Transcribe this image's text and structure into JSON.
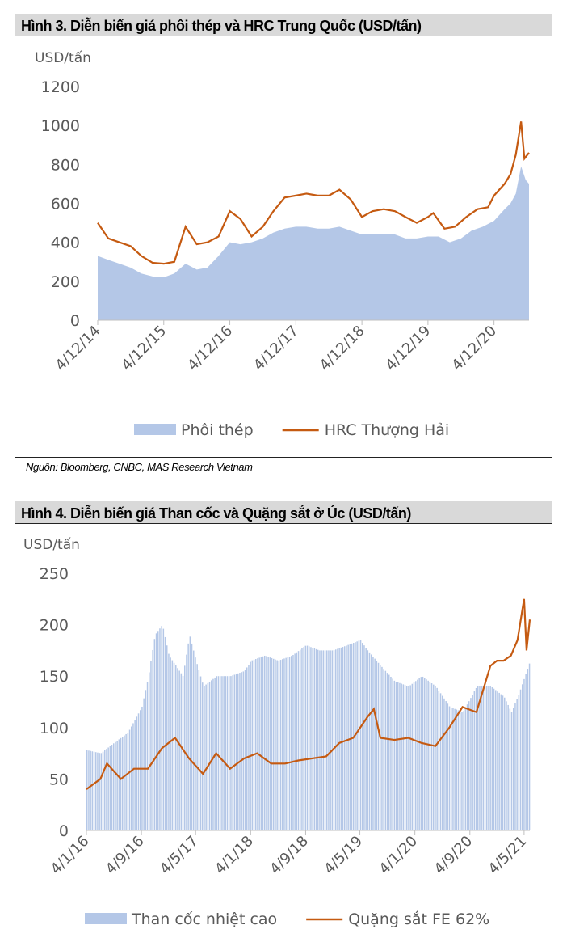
{
  "chart_data": [
    {
      "type": "area+line",
      "title": "Hình 3. Diễn biến giá phôi thép và HRC Trung Quốc (USD/tấn)",
      "ylabel": "USD/tấn",
      "xlabel": "",
      "ylim": [
        0,
        1200
      ],
      "yticks": [
        0,
        200,
        400,
        600,
        800,
        1000,
        1200
      ],
      "xtick_labels": [
        "4/12/14",
        "4/12/15",
        "4/12/16",
        "4/12/17",
        "4/12/18",
        "4/12/19",
        "4/12/20"
      ],
      "xticks": [
        2014.92,
        2015.92,
        2016.92,
        2017.92,
        2018.92,
        2019.92,
        2020.92
      ],
      "xlim": [
        2014.92,
        2021.45
      ],
      "legend": "bottom",
      "source": "Nguồn: Bloomberg, CNBC, MAS Research Vietnam",
      "series": [
        {
          "name": "Phôi thép",
          "kind": "area",
          "color": "#b4c7e7",
          "x": [
            2014.92,
            2015.08,
            2015.25,
            2015.42,
            2015.58,
            2015.75,
            2015.92,
            2016.08,
            2016.25,
            2016.42,
            2016.58,
            2016.75,
            2016.92,
            2017.08,
            2017.25,
            2017.42,
            2017.58,
            2017.75,
            2017.92,
            2018.08,
            2018.25,
            2018.42,
            2018.58,
            2018.75,
            2018.92,
            2019.08,
            2019.25,
            2019.42,
            2019.58,
            2019.75,
            2019.92,
            2020.08,
            2020.25,
            2020.42,
            2020.58,
            2020.75,
            2020.92,
            2021.08,
            2021.17,
            2021.25,
            2021.33,
            2021.4,
            2021.45
          ],
          "values": [
            330,
            310,
            290,
            270,
            240,
            225,
            220,
            240,
            290,
            260,
            270,
            330,
            400,
            390,
            400,
            420,
            450,
            470,
            480,
            480,
            470,
            470,
            480,
            460,
            440,
            440,
            440,
            440,
            420,
            420,
            430,
            430,
            400,
            420,
            460,
            480,
            510,
            570,
            600,
            650,
            790,
            720,
            700
          ]
        },
        {
          "name": "HRC Thượng Hải",
          "kind": "line",
          "color": "#c55a11",
          "x": [
            2014.92,
            2015.08,
            2015.25,
            2015.42,
            2015.58,
            2015.75,
            2015.92,
            2016.08,
            2016.25,
            2016.42,
            2016.58,
            2016.75,
            2016.92,
            2017.08,
            2017.25,
            2017.42,
            2017.58,
            2017.75,
            2017.92,
            2018.08,
            2018.25,
            2018.42,
            2018.58,
            2018.75,
            2018.92,
            2019.08,
            2019.25,
            2019.42,
            2019.58,
            2019.75,
            2019.92,
            2020.0,
            2020.17,
            2020.33,
            2020.5,
            2020.67,
            2020.83,
            2020.92,
            2021.08,
            2021.17,
            2021.25,
            2021.33,
            2021.38,
            2021.45
          ],
          "values": [
            500,
            420,
            400,
            380,
            330,
            295,
            290,
            300,
            480,
            390,
            400,
            430,
            560,
            520,
            430,
            480,
            560,
            630,
            640,
            650,
            640,
            640,
            670,
            620,
            530,
            560,
            570,
            560,
            530,
            500,
            530,
            550,
            470,
            480,
            530,
            570,
            580,
            640,
            700,
            750,
            850,
            1020,
            830,
            860
          ]
        }
      ]
    },
    {
      "type": "bar+line",
      "title": "Hình 4. Diễn biến giá Than cốc và Quặng sắt ở Úc (USD/tấn)",
      "ylabel": "USD/tấn",
      "xlabel": "",
      "ylim": [
        0,
        250
      ],
      "yticks": [
        0,
        50,
        100,
        150,
        200,
        250
      ],
      "xtick_labels": [
        "4/1/16",
        "4/9/16",
        "4/5/17",
        "4/1/18",
        "4/9/18",
        "4/5/19",
        "4/1/20",
        "4/9/20",
        "4/5/21"
      ],
      "xticks": [
        2016.0,
        2016.67,
        2017.33,
        2018.0,
        2018.67,
        2019.33,
        2020.0,
        2020.67,
        2021.33
      ],
      "xlim": [
        2016.0,
        2021.4
      ],
      "legend": "bottom",
      "series": [
        {
          "name": "Than cốc nhiệt cao",
          "kind": "bar",
          "color": "#b4c7e7",
          "x": [
            2016.0,
            2016.17,
            2016.33,
            2016.5,
            2016.67,
            2016.75,
            2016.83,
            2016.92,
            2017.0,
            2017.17,
            2017.25,
            2017.33,
            2017.42,
            2017.58,
            2017.75,
            2017.92,
            2018.0,
            2018.17,
            2018.33,
            2018.5,
            2018.67,
            2018.83,
            2019.0,
            2019.17,
            2019.33,
            2019.42,
            2019.58,
            2019.75,
            2019.92,
            2020.08,
            2020.25,
            2020.42,
            2020.58,
            2020.75,
            2020.92,
            2021.08,
            2021.17,
            2021.25,
            2021.4
          ],
          "values": [
            78,
            75,
            85,
            95,
            120,
            150,
            190,
            200,
            170,
            150,
            190,
            165,
            140,
            150,
            150,
            155,
            165,
            170,
            165,
            170,
            180,
            175,
            175,
            180,
            185,
            175,
            160,
            145,
            140,
            150,
            140,
            120,
            115,
            140,
            140,
            130,
            115,
            130,
            165
          ]
        },
        {
          "name": "Quặng sắt FE 62%",
          "kind": "line",
          "color": "#c55a11",
          "x": [
            2016.0,
            2016.17,
            2016.25,
            2016.42,
            2016.58,
            2016.75,
            2016.92,
            2017.08,
            2017.25,
            2017.42,
            2017.58,
            2017.75,
            2017.92,
            2018.08,
            2018.25,
            2018.42,
            2018.58,
            2018.75,
            2018.92,
            2019.08,
            2019.25,
            2019.42,
            2019.5,
            2019.58,
            2019.75,
            2019.92,
            2020.08,
            2020.25,
            2020.42,
            2020.58,
            2020.75,
            2020.92,
            2021.0,
            2021.08,
            2021.17,
            2021.25,
            2021.33,
            2021.36,
            2021.4
          ],
          "values": [
            40,
            50,
            65,
            50,
            60,
            60,
            80,
            90,
            70,
            55,
            75,
            60,
            70,
            75,
            65,
            65,
            68,
            70,
            72,
            85,
            90,
            110,
            118,
            90,
            88,
            90,
            85,
            82,
            100,
            120,
            115,
            160,
            165,
            165,
            170,
            185,
            225,
            175,
            205
          ]
        }
      ]
    }
  ]
}
